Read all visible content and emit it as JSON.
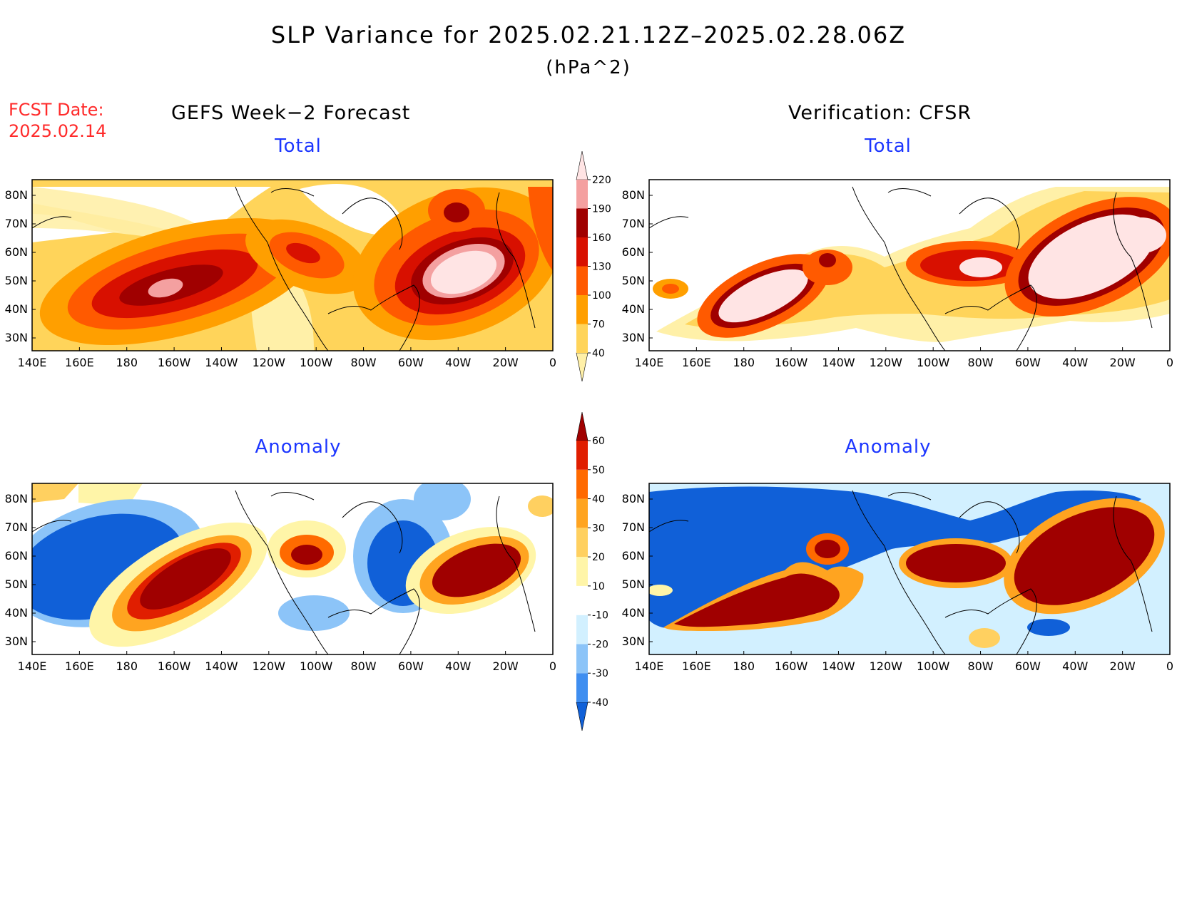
{
  "title": "SLP Variance for 2025.02.21.12Z–2025.02.28.06Z",
  "units": "(hPa^2)",
  "fcst_label": "FCST Date:",
  "fcst_date": "2025.02.14",
  "columns": {
    "left": "GEFS Week−2 Forecast",
    "right": "Verification: CFSR"
  },
  "panels": {
    "total_label": "Total",
    "anomaly_label": "Anomaly"
  },
  "axes": {
    "lat_labels": [
      "80N",
      "70N",
      "60N",
      "50N",
      "40N",
      "30N"
    ],
    "lon_labels": [
      "140E",
      "160E",
      "180",
      "160W",
      "140W",
      "120W",
      "100W",
      "80W",
      "60W",
      "40W",
      "20W",
      "0"
    ]
  },
  "colorbars": {
    "total": {
      "levels": [
        "40",
        "70",
        "100",
        "130",
        "160",
        "190",
        "220"
      ],
      "colors": [
        "#fff0a8",
        "#ffd45a",
        "#ff9f00",
        "#ff5a00",
        "#d81000",
        "#a00000",
        "#f4a0a0",
        "#ffe4e4"
      ]
    },
    "anomaly": {
      "levels": [
        "-40",
        "-30",
        "-20",
        "-10",
        "10",
        "20",
        "30",
        "40",
        "50",
        "60"
      ],
      "colors": [
        "#1060d8",
        "#3f8ef0",
        "#8cc4f8",
        "#d2f0ff",
        "#ffffff",
        "#fff5a8",
        "#ffd060",
        "#ffa420",
        "#ff6a00",
        "#e01e00",
        "#a00000"
      ]
    }
  }
}
